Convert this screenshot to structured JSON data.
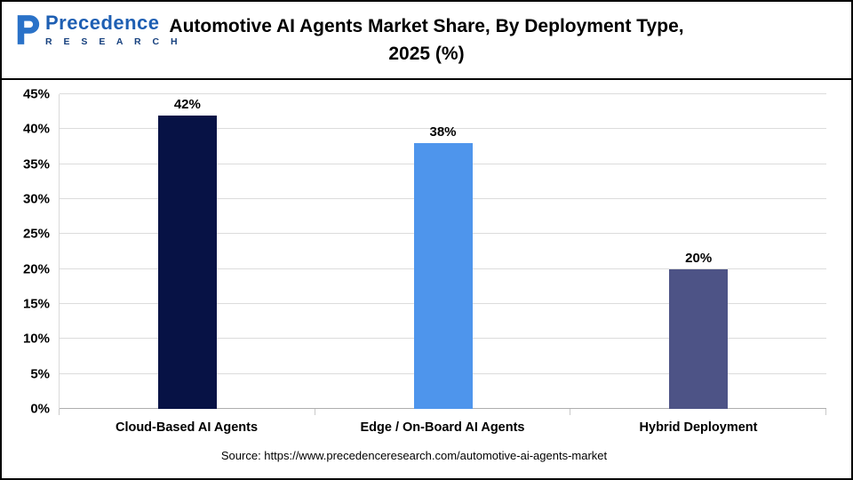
{
  "header": {
    "logo_text": "Precedence",
    "logo_subtext": "R E S E A R C H",
    "title_line1": "Automotive AI Agents Market Share, By Deployment Type,",
    "title_line2": "2025 (%)"
  },
  "chart_data": {
    "type": "bar",
    "title": "Automotive AI Agents Market Share, By Deployment Type, 2025 (%)",
    "categories": [
      "Cloud-Based AI Agents",
      "Edge / On-Board AI Agents",
      "Hybrid Deployment"
    ],
    "values": [
      42,
      38,
      20
    ],
    "value_labels": [
      "42%",
      "38%",
      "20%"
    ],
    "bar_colors": [
      "#071245",
      "#4e95ec",
      "#4d5386"
    ],
    "xlabel": "",
    "ylabel": "",
    "ylim": [
      0,
      45
    ],
    "ytick_step": 5,
    "ytick_labels": [
      "0%",
      "5%",
      "10%",
      "15%",
      "20%",
      "25%",
      "30%",
      "35%",
      "40%",
      "45%"
    ],
    "grid": true,
    "legend": false
  },
  "footer": {
    "source": "Source: https://www.precedenceresearch.com/automotive-ai-agents-market"
  }
}
